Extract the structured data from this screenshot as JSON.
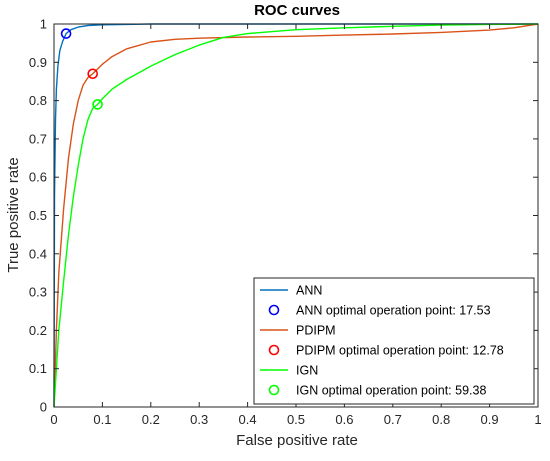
{
  "chart_data": {
    "type": "line",
    "title": "ROC curves",
    "xlabel": "False positive rate",
    "ylabel": "True positive rate",
    "xlim": [
      0,
      1
    ],
    "ylim": [
      0,
      1
    ],
    "x_ticks": [
      0,
      0.1,
      0.2,
      0.3,
      0.4,
      0.5,
      0.6,
      0.7,
      0.8,
      0.9,
      1
    ],
    "x_tick_labels": [
      "0",
      "0.1",
      "0.2",
      "0.3",
      "0.4",
      "0.5",
      "0.6",
      "0.7",
      "0.8",
      "0.9",
      "1"
    ],
    "y_ticks": [
      0,
      0.1,
      0.2,
      0.3,
      0.4,
      0.5,
      0.6,
      0.7,
      0.8,
      0.9,
      1
    ],
    "y_tick_labels": [
      "0",
      "0.1",
      "0.2",
      "0.3",
      "0.4",
      "0.5",
      "0.6",
      "0.7",
      "0.8",
      "0.9",
      "1"
    ],
    "grid": false,
    "legend_position": "bottom-right",
    "series": [
      {
        "name": "ANN",
        "kind": "line",
        "color": "#0072BD",
        "x": [
          0,
          0.001,
          0.003,
          0.005,
          0.008,
          0.012,
          0.018,
          0.025,
          0.035,
          0.05,
          0.07,
          0.1,
          0.15,
          0.2,
          0.4,
          0.6,
          0.8,
          1
        ],
        "y": [
          0,
          0.55,
          0.75,
          0.83,
          0.89,
          0.93,
          0.955,
          0.975,
          0.985,
          0.992,
          0.996,
          0.998,
          0.999,
          1,
          1,
          1,
          1,
          1
        ]
      },
      {
        "name": "ANN optimal operation point: 17.53",
        "kind": "marker",
        "color": "#0000FF",
        "x": [
          0.025
        ],
        "y": [
          0.975
        ]
      },
      {
        "name": "PDIPM",
        "kind": "line",
        "color": "#D95319",
        "x": [
          0,
          0.005,
          0.01,
          0.02,
          0.03,
          0.04,
          0.05,
          0.06,
          0.07,
          0.08,
          0.1,
          0.12,
          0.15,
          0.2,
          0.25,
          0.3,
          0.4,
          0.5,
          0.6,
          0.7,
          0.8,
          0.9,
          0.95,
          1
        ],
        "y": [
          0,
          0.2,
          0.35,
          0.52,
          0.65,
          0.74,
          0.8,
          0.84,
          0.86,
          0.87,
          0.895,
          0.915,
          0.935,
          0.953,
          0.96,
          0.963,
          0.966,
          0.968,
          0.971,
          0.974,
          0.978,
          0.984,
          0.99,
          1
        ]
      },
      {
        "name": "PDIPM optimal operation point: 12.78",
        "kind": "marker",
        "color": "#FF0000",
        "x": [
          0.08
        ],
        "y": [
          0.87
        ]
      },
      {
        "name": "IGN",
        "kind": "line",
        "color": "#00FF00",
        "x": [
          0,
          0.005,
          0.01,
          0.02,
          0.03,
          0.04,
          0.05,
          0.06,
          0.07,
          0.08,
          0.09,
          0.1,
          0.12,
          0.15,
          0.2,
          0.25,
          0.3,
          0.35,
          0.4,
          0.5,
          0.6,
          0.7,
          0.8,
          0.9,
          1
        ],
        "y": [
          0,
          0.1,
          0.2,
          0.33,
          0.45,
          0.55,
          0.63,
          0.7,
          0.75,
          0.78,
          0.79,
          0.805,
          0.83,
          0.855,
          0.89,
          0.92,
          0.945,
          0.965,
          0.975,
          0.985,
          0.99,
          0.994,
          0.997,
          0.999,
          1
        ]
      },
      {
        "name": "IGN optimal operation point: 59.38",
        "kind": "marker",
        "color": "#00FF00",
        "x": [
          0.09
        ],
        "y": [
          0.79
        ]
      }
    ]
  }
}
